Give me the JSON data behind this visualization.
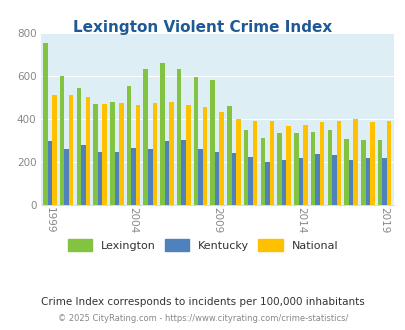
{
  "title": "Lexington Violent Crime Index",
  "years": [
    1999,
    2000,
    2001,
    2002,
    2003,
    2004,
    2005,
    2006,
    2007,
    2008,
    2009,
    2010,
    2011,
    2012,
    2013,
    2014,
    2015,
    2016,
    2017,
    2018,
    2019
  ],
  "lexington": [
    755,
    600,
    545,
    470,
    480,
    555,
    630,
    660,
    630,
    595,
    580,
    460,
    350,
    310,
    335,
    335,
    340,
    350,
    305,
    300,
    300
  ],
  "kentucky": [
    295,
    260,
    280,
    245,
    245,
    265,
    260,
    295,
    300,
    260,
    245,
    240,
    220,
    200,
    210,
    215,
    235,
    230,
    210,
    215,
    215
  ],
  "national": [
    510,
    510,
    500,
    470,
    475,
    465,
    475,
    480,
    465,
    455,
    430,
    400,
    390,
    390,
    365,
    370,
    385,
    390,
    400,
    385,
    390
  ],
  "bar_width": 0.27,
  "colors": {
    "lexington": "#82c341",
    "kentucky": "#4f81bd",
    "national": "#ffc000"
  },
  "ylim": [
    0,
    800
  ],
  "yticks": [
    0,
    200,
    400,
    600,
    800
  ],
  "xlabel_ticks": [
    1999,
    2004,
    2009,
    2014,
    2019
  ],
  "bg_color": "#ffffff",
  "plot_bg": "#ddeef5",
  "title_color": "#1f5a96",
  "subtitle": "Crime Index corresponds to incidents per 100,000 inhabitants",
  "footer": "© 2025 CityRating.com - https://www.cityrating.com/crime-statistics/",
  "legend_labels": [
    "Lexington",
    "Kentucky",
    "National"
  ],
  "subtitle_color": "#333333",
  "footer_color": "#888888"
}
